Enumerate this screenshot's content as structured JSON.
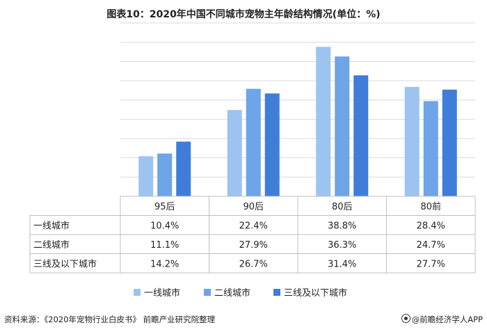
{
  "title": "图表10：2020年中国不同城市宠物主年龄结构情况(单位：%)",
  "source": "资料来源：《2020年宠物行业白皮书》 前瞻产业研究院整理",
  "brand": "@前瞻经济学人APP",
  "colors": {
    "tier1": "#9dc3f0",
    "tier2": "#6ea4e8",
    "tier3": "#3e7ed8",
    "grid": "#d9d9d9"
  },
  "chart_data": {
    "type": "bar",
    "categories": [
      "95后",
      "90后",
      "80后",
      "80前"
    ],
    "series": [
      {
        "name": "一线城市",
        "values": [
          10.4,
          22.4,
          38.8,
          28.4
        ],
        "labels": [
          "10.4%",
          "22.4%",
          "38.8%",
          "28.4%"
        ]
      },
      {
        "name": "二线城市",
        "values": [
          11.1,
          27.9,
          36.3,
          24.7
        ],
        "labels": [
          "11.1%",
          "27.9%",
          "36.3%",
          "24.7%"
        ]
      },
      {
        "name": "三线及以下城市",
        "values": [
          14.2,
          26.7,
          31.4,
          27.7
        ],
        "labels": [
          "14.2%",
          "26.7%",
          "31.4%",
          "27.7%"
        ]
      }
    ],
    "ylim": [
      0,
      45
    ],
    "grid": true,
    "legend_position": "bottom",
    "data_table": true
  }
}
